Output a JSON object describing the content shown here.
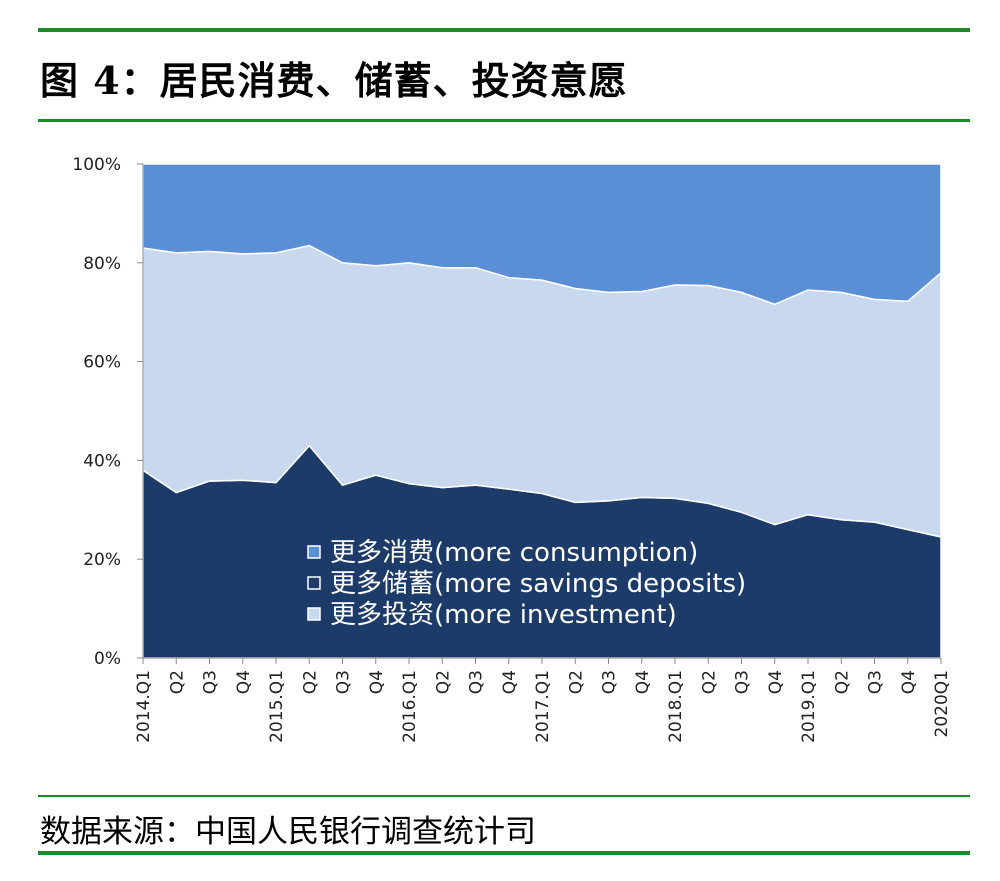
{
  "header": {
    "title": "图 4：居民消费、储蓄、投资意愿"
  },
  "footer": {
    "source": "数据来源：中国人民银行调查统计司"
  },
  "colors": {
    "rule": "#1f8a2a",
    "consumption": "#5a8fd6",
    "savings": "#1d3b68",
    "investment": "#c8d8ee"
  },
  "chart_data": {
    "type": "area",
    "stacked": true,
    "ylim": [
      0,
      100
    ],
    "y_ticks": [
      "0%",
      "20%",
      "40%",
      "60%",
      "80%",
      "100%"
    ],
    "categories": [
      "2014.Q1",
      "Q2",
      "Q3",
      "Q4",
      "2015.Q1",
      "Q2",
      "Q3",
      "Q4",
      "2016.Q1",
      "Q2",
      "Q3",
      "Q4",
      "2017.Q1",
      "Q2",
      "Q3",
      "Q4",
      "2018.Q1",
      "Q2",
      "Q3",
      "Q4",
      "2019.Q1",
      "Q2",
      "Q3",
      "Q4",
      "2020Q1"
    ],
    "series": [
      {
        "name": "更多储蓄(more savings deposits)",
        "key": "savings",
        "values": [
          38.0,
          33.5,
          35.8,
          36.0,
          35.5,
          43.0,
          35.0,
          37.0,
          35.3,
          34.5,
          35.0,
          34.2,
          33.3,
          31.5,
          31.8,
          32.5,
          32.3,
          31.3,
          29.5,
          27.0,
          29.0,
          28.0,
          27.5,
          26.0,
          24.5
        ]
      },
      {
        "name": "更多投资(more investment)",
        "key": "investment",
        "values": [
          45.0,
          48.5,
          46.5,
          45.8,
          46.5,
          40.5,
          45.0,
          42.4,
          44.7,
          44.5,
          44.0,
          42.8,
          43.2,
          43.3,
          42.2,
          41.7,
          43.2,
          44.1,
          44.5,
          44.6,
          45.5,
          46.0,
          45.1,
          46.2,
          53.5
        ]
      },
      {
        "name": "更多消费(more consumption)",
        "key": "consumption",
        "values": [
          17.0,
          18.0,
          17.7,
          18.2,
          18.0,
          16.5,
          20.0,
          20.6,
          20.0,
          21.0,
          21.0,
          23.0,
          23.5,
          25.2,
          26.0,
          25.8,
          24.5,
          24.6,
          26.0,
          28.4,
          25.5,
          26.0,
          27.4,
          27.8,
          22.0
        ]
      }
    ],
    "legend": {
      "position": "inside-bottom-center",
      "order": [
        "consumption",
        "savings",
        "investment"
      ],
      "entries": [
        {
          "key": "consumption",
          "label": "更多消费(more consumption)"
        },
        {
          "key": "savings",
          "label": "更多储蓄(more savings deposits)"
        },
        {
          "key": "investment",
          "label": "更多投资(more investment)"
        }
      ]
    }
  }
}
